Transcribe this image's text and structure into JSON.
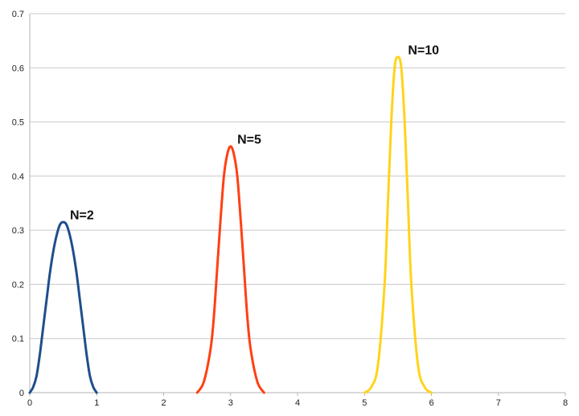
{
  "chart_data": {
    "type": "line",
    "title": "",
    "xlabel": "",
    "ylabel": "",
    "xlim": [
      0,
      8
    ],
    "ylim": [
      0,
      0.7
    ],
    "x_ticks": [
      "0",
      "1",
      "2",
      "3",
      "4",
      "5",
      "6",
      "7",
      "8"
    ],
    "y_ticks": [
      "0",
      "0.1",
      "0.2",
      "0.3",
      "0.4",
      "0.5",
      "0.6",
      "0.7"
    ],
    "grid": "horizontal",
    "legend": "none",
    "series": [
      {
        "color": "#1f4e8c",
        "x": [
          0,
          0.05,
          0.1,
          0.15,
          0.2,
          0.25,
          0.3,
          0.35,
          0.4,
          0.45,
          0.5,
          0.55,
          0.6,
          0.65,
          0.7,
          0.75,
          0.8,
          0.85,
          0.9,
          0.95,
          1.0
        ],
        "y": [
          0,
          0.01,
          0.03,
          0.07,
          0.12,
          0.17,
          0.22,
          0.26,
          0.29,
          0.31,
          0.315,
          0.31,
          0.29,
          0.26,
          0.22,
          0.17,
          0.12,
          0.07,
          0.03,
          0.01,
          0
        ],
        "annotation": {
          "text": "N=2",
          "x": 0.6,
          "y": 0.32
        }
      },
      {
        "color": "#ff4013",
        "x": [
          2.5,
          2.6,
          2.7,
          2.75,
          2.8,
          2.85,
          2.9,
          2.95,
          3.0,
          3.05,
          3.1,
          3.15,
          3.2,
          3.25,
          3.3,
          3.4,
          3.5
        ],
        "y": [
          0,
          0.02,
          0.08,
          0.14,
          0.23,
          0.32,
          0.4,
          0.44,
          0.455,
          0.44,
          0.4,
          0.32,
          0.23,
          0.14,
          0.08,
          0.02,
          0
        ],
        "annotation": {
          "text": "N=5",
          "x": 3.1,
          "y": 0.46
        }
      },
      {
        "color": "#ffd31a",
        "x": [
          5.0,
          5.1,
          5.2,
          5.3,
          5.35,
          5.4,
          5.45,
          5.5,
          5.55,
          5.6,
          5.65,
          5.7,
          5.8,
          5.9,
          6.0
        ],
        "y": [
          0,
          0.01,
          0.05,
          0.2,
          0.35,
          0.5,
          0.6,
          0.62,
          0.6,
          0.5,
          0.35,
          0.2,
          0.05,
          0.01,
          0
        ],
        "annotation": {
          "text": "N=10",
          "x": 5.65,
          "y": 0.625
        }
      }
    ]
  }
}
